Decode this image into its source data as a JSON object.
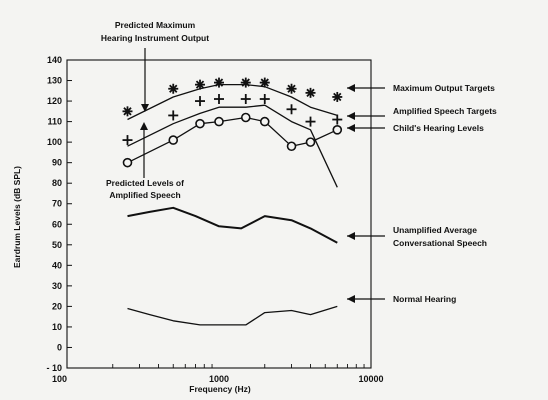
{
  "chart_data": {
    "type": "line",
    "title": "",
    "xlabel": "Frequency (Hz)",
    "ylabel": "Eardrum Levels (dB SPL)",
    "xscale": "log",
    "xlim": [
      100,
      10000
    ],
    "ylim": [
      -10,
      140
    ],
    "xticks": [
      "100",
      "1000",
      "10000"
    ],
    "yticks": [
      "140",
      "130",
      "120",
      "110",
      "100",
      "90",
      "80",
      "70",
      "60",
      "50",
      "40",
      "30",
      "20",
      "10",
      "0",
      "- 10"
    ],
    "grid": false,
    "series": [
      {
        "name": "Maximum Output Targets",
        "marker": "asterisk",
        "line": "none",
        "x": [
          250,
          500,
          750,
          1000,
          1500,
          2000,
          3000,
          4000,
          6000
        ],
        "y": [
          115,
          126,
          128,
          129,
          129,
          129,
          126,
          124,
          122
        ]
      },
      {
        "name": "",
        "marker": "none",
        "line": "solid",
        "x": [
          250,
          500,
          750,
          1000,
          1500,
          2000,
          3000,
          4000,
          6000
        ],
        "y": [
          111,
          122,
          126,
          128,
          128,
          127,
          122,
          117,
          113
        ]
      },
      {
        "name": "Amplified Speech Targets",
        "marker": "plus",
        "line": "none",
        "x": [
          250,
          500,
          750,
          1000,
          1500,
          2000,
          3000,
          4000,
          6000
        ],
        "y": [
          101,
          113,
          120,
          121,
          121,
          121,
          116,
          110,
          111
        ]
      },
      {
        "name": "",
        "marker": "none",
        "line": "solid",
        "x": [
          250,
          500,
          750,
          1000,
          1500,
          2000,
          3000,
          4000,
          6000
        ],
        "y": [
          98,
          109,
          114,
          117,
          117,
          118,
          110,
          106,
          78
        ]
      },
      {
        "name": "Child's Hearing Levels",
        "marker": "circle",
        "line": "solid",
        "x": [
          250,
          500,
          750,
          1000,
          1500,
          2000,
          3000,
          4000,
          6000
        ],
        "y": [
          90,
          101,
          109,
          110,
          112,
          110,
          98,
          100,
          106
        ]
      },
      {
        "name": "Unamplified Average Conversational Speech",
        "marker": "none",
        "line": "solid",
        "x": [
          250,
          350,
          500,
          700,
          1000,
          1400,
          2000,
          3000,
          4000,
          6000
        ],
        "y": [
          64,
          66,
          68,
          64,
          59,
          58,
          64,
          62,
          58,
          51
        ]
      },
      {
        "name": "Normal Hearing",
        "marker": "none",
        "line": "solid",
        "x": [
          250,
          350,
          500,
          750,
          1000,
          1500,
          2000,
          3000,
          4000,
          6000
        ],
        "y": [
          19,
          16,
          13,
          11,
          11,
          11,
          17,
          18,
          16,
          20
        ]
      }
    ],
    "annotations": [
      "Predicted Maximum Hearing Instrument Output",
      "Predicted Levels of Amplified Speech"
    ]
  },
  "colors": {
    "ink": "#111111",
    "background": "#f4f4f2"
  }
}
